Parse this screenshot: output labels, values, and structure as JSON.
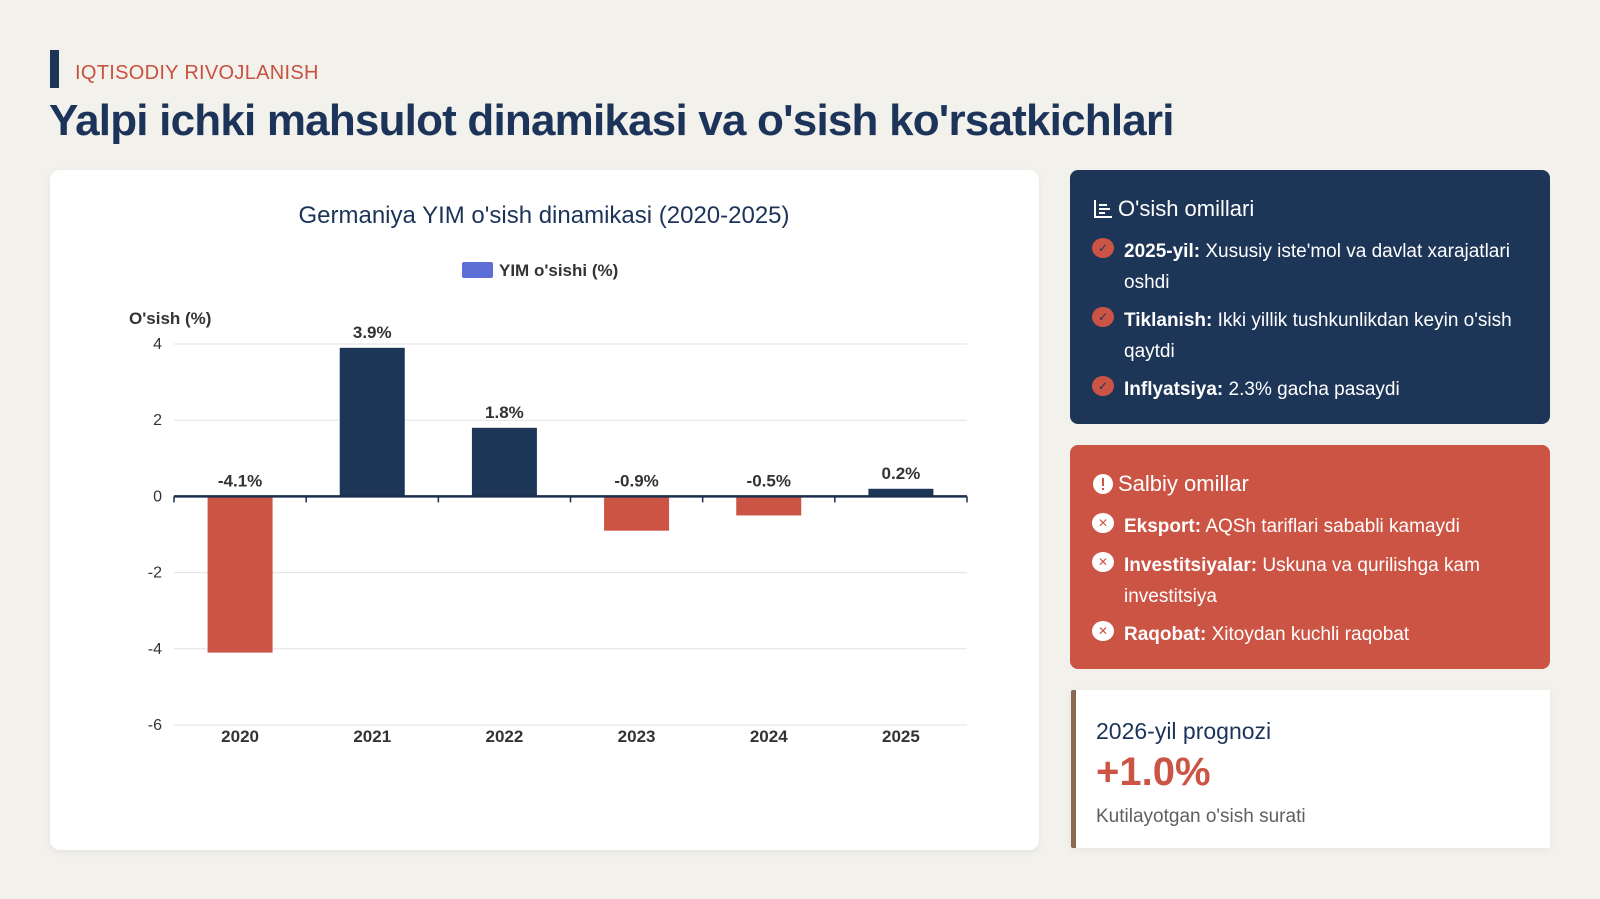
{
  "header": {
    "section_tag": "IQTISODIY RIVOJLANISH",
    "title": "Yalpi ichki mahsulot dinamikasi va o'sish ko'rsatkichlari"
  },
  "colors": {
    "positive": "#1d3557",
    "negative": "#cc5444",
    "legend_swatch": "#5b6fd6",
    "accent": "#c9513f"
  },
  "chart_data": {
    "type": "bar",
    "title": "Germaniya YIM o'sish dinamikasi (2020-2025)",
    "legend": "YIM o'sishi (%)",
    "legend_position": "top-center",
    "ylabel": "O'sish (%)",
    "xlabel": "",
    "categories": [
      "2020",
      "2021",
      "2022",
      "2023",
      "2024",
      "2025"
    ],
    "values": [
      -4.1,
      3.9,
      1.8,
      -0.9,
      -0.5,
      0.2
    ],
    "value_labels": [
      "-4.1%",
      "3.9%",
      "1.8%",
      "-0.9%",
      "-0.5%",
      "0.2%"
    ],
    "ylim": [
      -6,
      4
    ],
    "yticks": [
      4,
      2,
      0,
      -2,
      -4,
      -6
    ],
    "grid": true
  },
  "positive_factors": {
    "title": "O'sish omillari",
    "icon": "chart-icon",
    "items": [
      {
        "label": "2025-yil:",
        "text": "Xususiy iste'mol va davlat xarajatlari oshdi"
      },
      {
        "label": "Tiklanish:",
        "text": "Ikki yillik tushkunlikdan keyin o'sish qaytdi"
      },
      {
        "label": "Inflyatsiya:",
        "text": "2.3% gacha pasaydi"
      }
    ]
  },
  "negative_factors": {
    "title": "Salbiy omillar",
    "icon": "warning-icon",
    "items": [
      {
        "label": "Eksport:",
        "text": "AQSh tariflari sababli kamaydi"
      },
      {
        "label": "Investitsiyalar:",
        "text": "Uskuna va qurilishga kam investitsiya"
      },
      {
        "label": "Raqobat:",
        "text": "Xitoydan kuchli raqobat"
      }
    ]
  },
  "forecast": {
    "title": "2026-yil prognozi",
    "value": "+1.0%",
    "subtitle": "Kutilayotgan o'sish surati"
  }
}
